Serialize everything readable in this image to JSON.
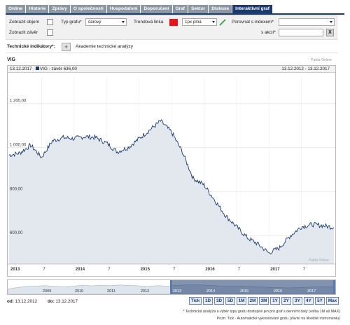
{
  "tabs": [
    {
      "label": "Online",
      "active": false
    },
    {
      "label": "Historie",
      "active": false
    },
    {
      "label": "Zprávy",
      "active": false
    },
    {
      "label": "O společnosti",
      "active": false
    },
    {
      "label": "Hospodaření",
      "active": false
    },
    {
      "label": "Doporučení",
      "active": false
    },
    {
      "label": "Graf",
      "active": false
    },
    {
      "label": "Sektor",
      "active": false
    },
    {
      "label": "Diskuse",
      "active": false
    },
    {
      "label": "Interaktivní graf",
      "active": true
    }
  ],
  "controls": {
    "show_volume_label": "Zobrazit objem",
    "show_close_label": "Zobrazit závěr",
    "chart_type_label": "Typ grafu*",
    "chart_type_value": "čárový",
    "trend_line_label": "Trendová linka",
    "trend_color": "#e8141b",
    "trend_style_value": "1px plná",
    "compare_index_label": "Porovnat s indexem*",
    "compare_index_value": "",
    "with_stock_label": "s akcií*",
    "with_stock_value": "",
    "clear_label": "X"
  },
  "technical": {
    "label": "Technické indikátory*:",
    "plus_label": "+",
    "academy_label": "Akademie technické analýzy"
  },
  "chart": {
    "title": "VIG",
    "source_top": "Patria Online",
    "source_bottom": "Patria Online",
    "header_date": "13.12.2017",
    "header_series": "VIG - závěr 636,00",
    "header_range": "13.12.2012 - 13.12.2017",
    "line_color": "#1c3a6e",
    "fill_color": "#e3e8ef"
  },
  "chart_data": {
    "type": "area",
    "title": "VIG",
    "series": [
      {
        "name": "VIG - závěr 636,00"
      }
    ],
    "x_tick_labels": [
      "2013",
      "7",
      "2014",
      "7",
      "2015",
      "7",
      "2016",
      "7",
      "2017",
      "7"
    ],
    "y_tick_labels": [
      "1 200,00",
      "1 000,00",
      "800,00",
      "600,00"
    ],
    "ylim": [
      470,
      1320
    ],
    "x": [
      "2012-12",
      "2013-02",
      "2013-04",
      "2013-06",
      "2013-08",
      "2013-10",
      "2013-12",
      "2014-02",
      "2014-04",
      "2014-06",
      "2014-08",
      "2014-10",
      "2014-12",
      "2015-02",
      "2015-04",
      "2015-06",
      "2015-08",
      "2015-10",
      "2015-12",
      "2016-02",
      "2016-04",
      "2016-06",
      "2016-08",
      "2016-10",
      "2016-12",
      "2017-02",
      "2017-04",
      "2017-06",
      "2017-08",
      "2017-10",
      "2017-12"
    ],
    "values": [
      965,
      975,
      1010,
      955,
      1030,
      1045,
      1040,
      1050,
      1045,
      1020,
      980,
      1000,
      1040,
      1080,
      1120,
      1070,
      980,
      860,
      830,
      760,
      690,
      640,
      590,
      560,
      520,
      545,
      600,
      640,
      650,
      645,
      636
    ],
    "grid": true
  },
  "navigator": {
    "year_labels": [
      "2009",
      "2010",
      "2011",
      "2012",
      "2013",
      "2014",
      "2015",
      "2016",
      "2017"
    ],
    "values": [
      34,
      46,
      56,
      60,
      64,
      58,
      52,
      60,
      66,
      62,
      68,
      64,
      70,
      66,
      62,
      58,
      64,
      60,
      66,
      70,
      72,
      68,
      64,
      60,
      58,
      62,
      56,
      52,
      48,
      46,
      44,
      46,
      50,
      52,
      54,
      56
    ]
  },
  "bottom": {
    "from_label": "od:",
    "from_value": "13.12.2012",
    "to_label": "do:",
    "to_value": "13.12.2017",
    "range_buttons": [
      "Tick",
      "1D",
      "3D",
      "5D",
      "1M",
      "2M",
      "3M",
      "1Y",
      "2Y",
      "3Y",
      "4Y",
      "5Y",
      "Max"
    ]
  },
  "notes": {
    "note1": "* Technická analýza a výběr typu grafu dostupné jen pro graf s denními daty (volba 1M až MAX)",
    "note2": "Pozn: Tick - Automatické vykreslování grafu (závisí na likviditě instrumentu)"
  }
}
